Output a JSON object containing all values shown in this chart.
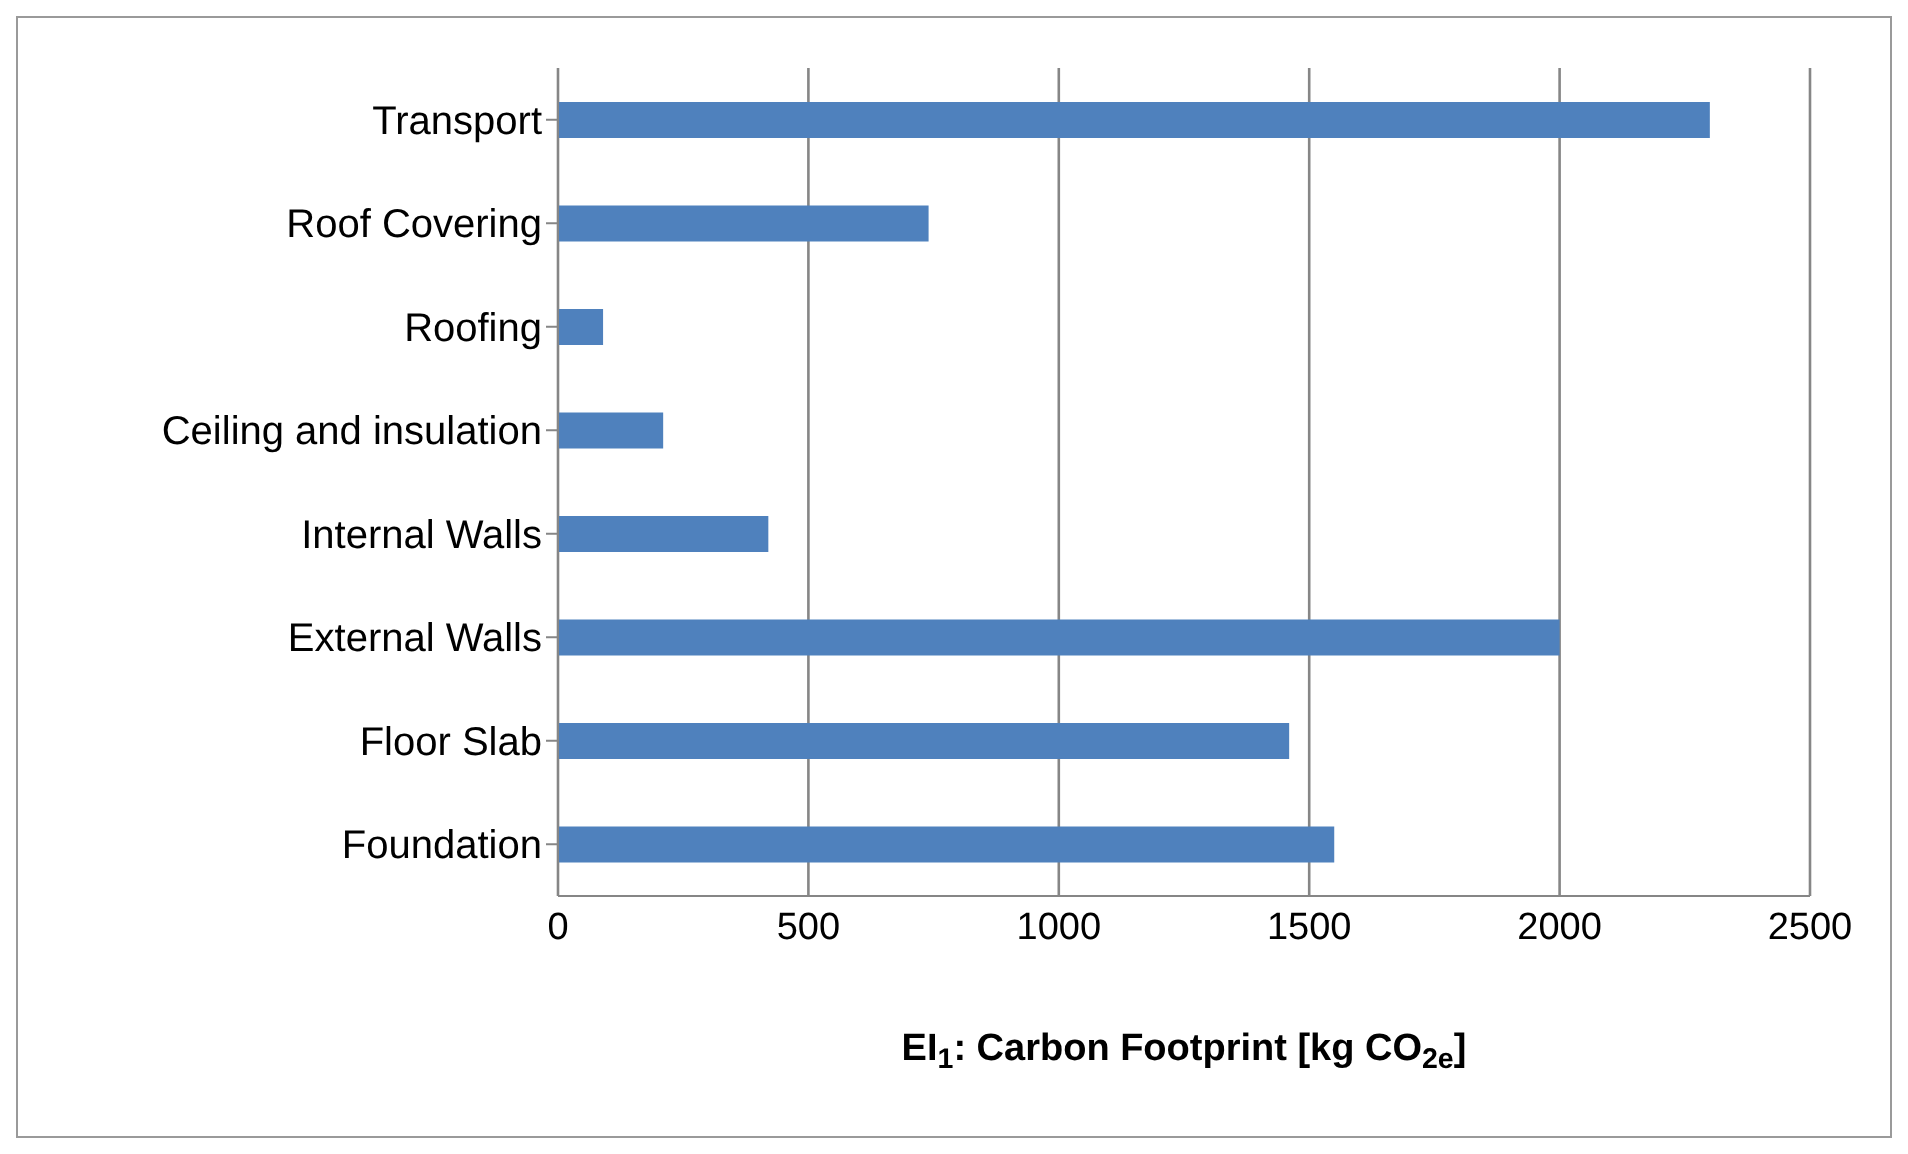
{
  "chart_data": {
    "type": "bar",
    "orientation": "horizontal",
    "xlabel": "EI$_{1}$: Carbon Footprint [kg CO$_{2e}$]",
    "categories": [
      "Transport",
      "Roof Covering",
      "Roofing",
      "Ceiling and insulation",
      "Internal Walls",
      "External Walls",
      "Floor Slab",
      "Foundation"
    ],
    "values": [
      2300,
      740,
      90,
      210,
      420,
      2000,
      1460,
      1550
    ],
    "color": "#4f81bd",
    "xlim": [
      0,
      2500
    ],
    "xticks": [
      0,
      500,
      1000,
      1500,
      2000,
      2500
    ],
    "grid": "x",
    "legend": false
  }
}
